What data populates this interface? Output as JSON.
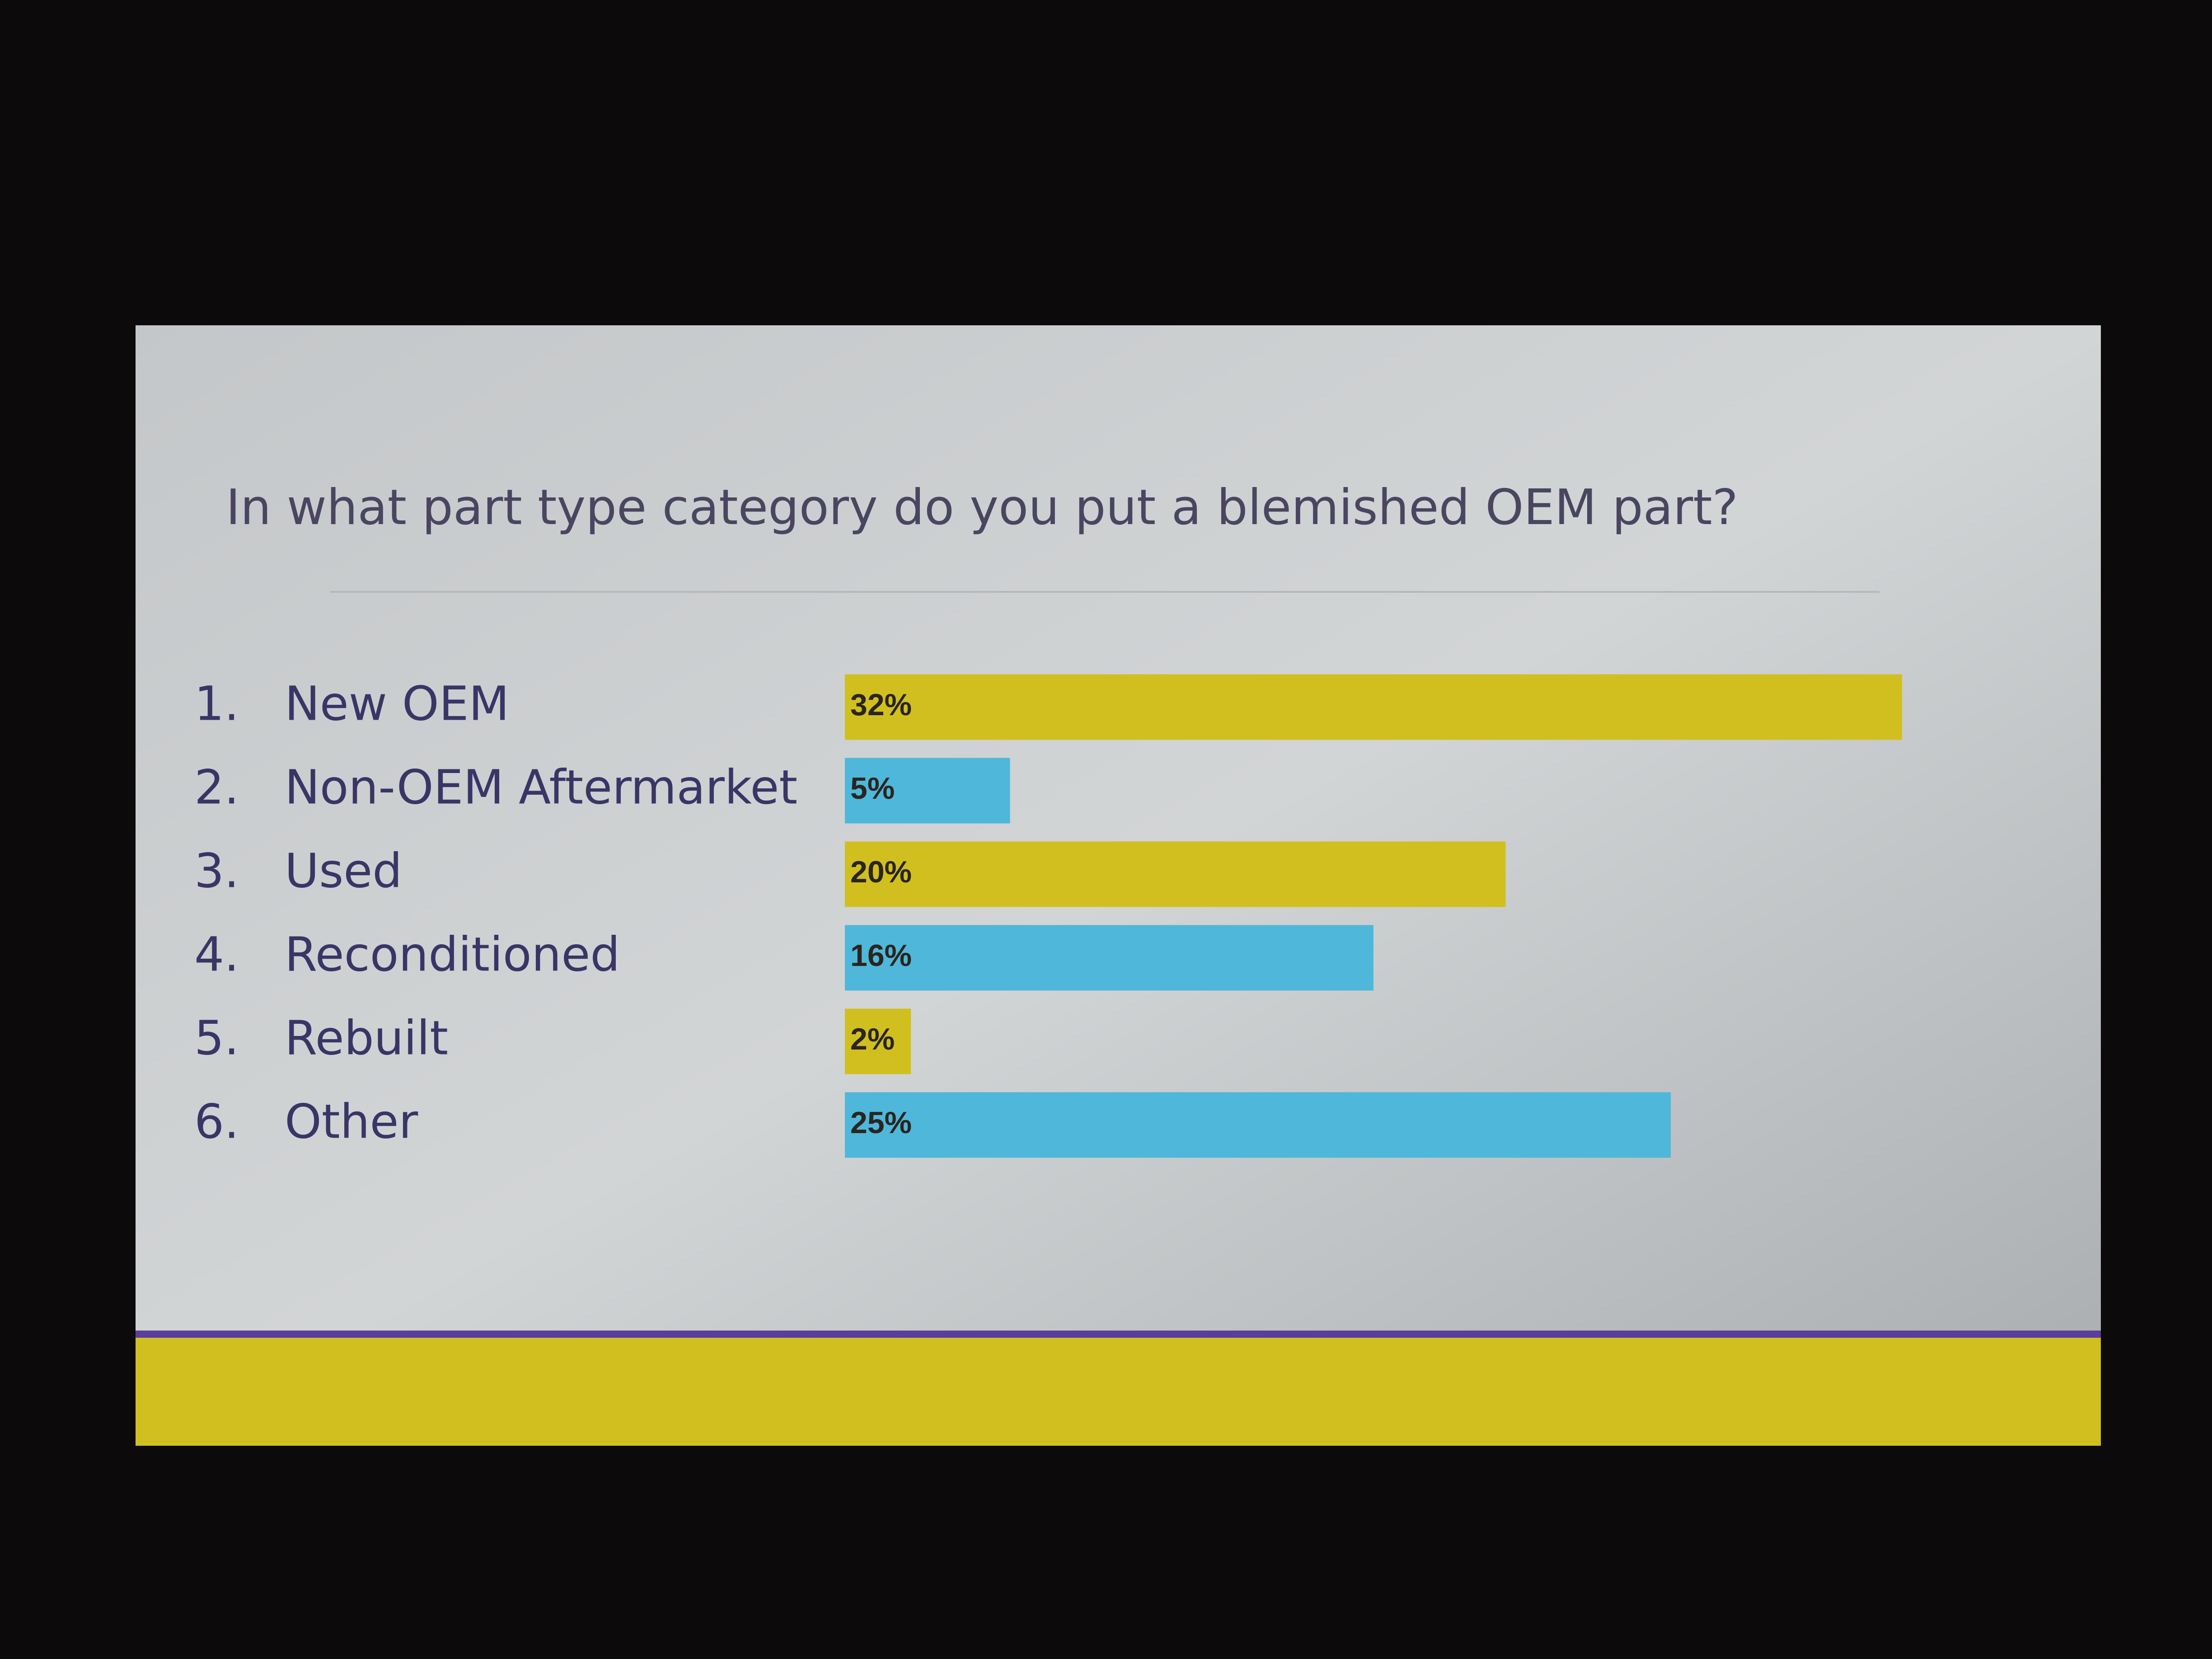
{
  "chart_data": {
    "type": "bar",
    "orientation": "horizontal",
    "title": "In what part type category do you put a blemished OEM part?",
    "category_numbers": [
      "1.",
      "2.",
      "3.",
      "4.",
      "5.",
      "6."
    ],
    "categories": [
      "New OEM",
      "Non-OEM Aftermarket",
      "Used",
      "Reconditioned",
      "Rebuilt",
      "Other"
    ],
    "values": [
      32,
      5,
      20,
      16,
      2,
      25
    ],
    "value_labels": [
      "32%",
      "5%",
      "20%",
      "16%",
      "2%",
      "25%"
    ],
    "colors": [
      "#d1bf1f",
      "#4fb7d9",
      "#d1bf1f",
      "#4fb7d9",
      "#d1bf1f",
      "#4fb7d9"
    ]
  }
}
